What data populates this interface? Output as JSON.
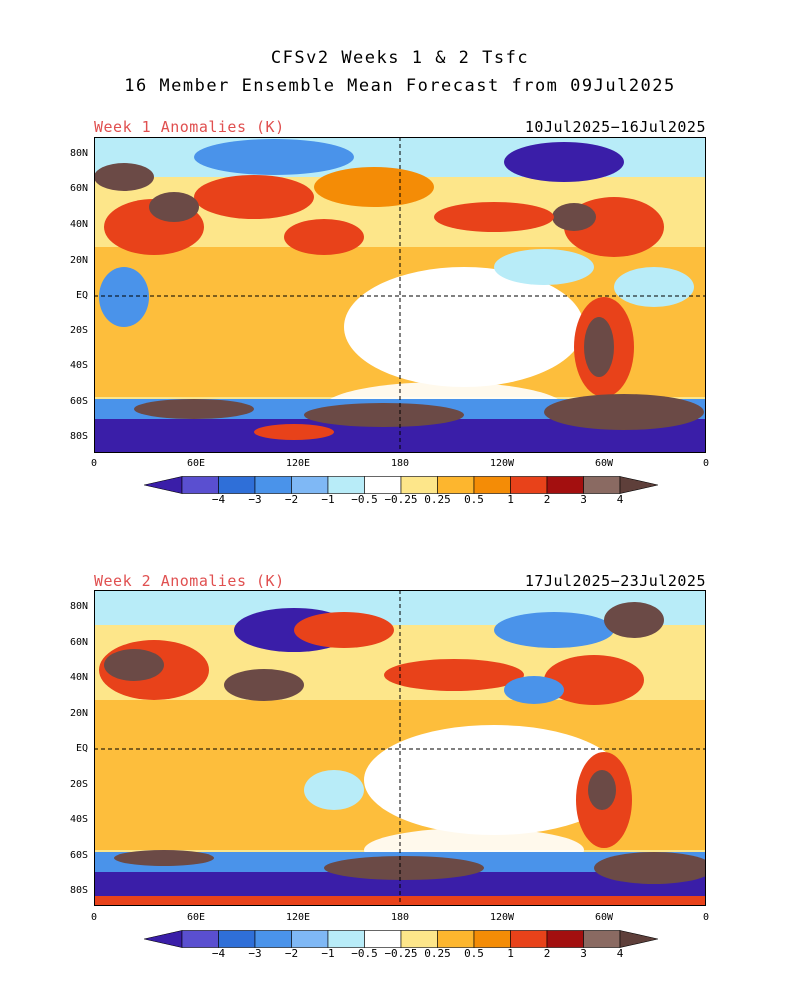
{
  "title": {
    "line1": "CFSv2 Weeks 1 & 2 Tsfc",
    "line2": "16 Member Ensemble Mean Forecast from 09Jul2025"
  },
  "panels": [
    {
      "label_left": "Week 1 Anomalies (K)",
      "label_right": "10Jul2025−16Jul2025"
    },
    {
      "label_left": "Week 2 Anomalies (K)",
      "label_right": "17Jul2025−23Jul2025"
    }
  ],
  "lat_ticks": [
    "80N",
    "60N",
    "40N",
    "20N",
    "EQ",
    "20S",
    "40S",
    "60S",
    "80S"
  ],
  "lon_ticks": [
    "0",
    "60E",
    "120E",
    "180",
    "120W",
    "60W",
    "0"
  ],
  "colorbar": {
    "labels": [
      "−4",
      "−3",
      "−2",
      "−1",
      "−0.5",
      "−0.25",
      "0.25",
      "0.5",
      "1",
      "2",
      "3",
      "4"
    ],
    "colors": [
      "#3a1ea8",
      "#5a4fd0",
      "#2f6fd8",
      "#4a93ea",
      "#7fb8f5",
      "#b8ecf8",
      "#ffffff",
      "#fde68a",
      "#fdb62e",
      "#f48c06",
      "#e8421a",
      "#a30f0f",
      "#8a6a62",
      "#5e3f3a"
    ]
  },
  "legend_colors": {
    "strong_warm": "#6b4a46",
    "warm": "#e8421a",
    "mild_warm": "#f7a21b",
    "weak_warm": "#fde68a",
    "neutral": "#ffffff",
    "weak_cold": "#b8ecf8",
    "cold": "#4a93ea",
    "strong_cold": "#3a1ea8"
  }
}
